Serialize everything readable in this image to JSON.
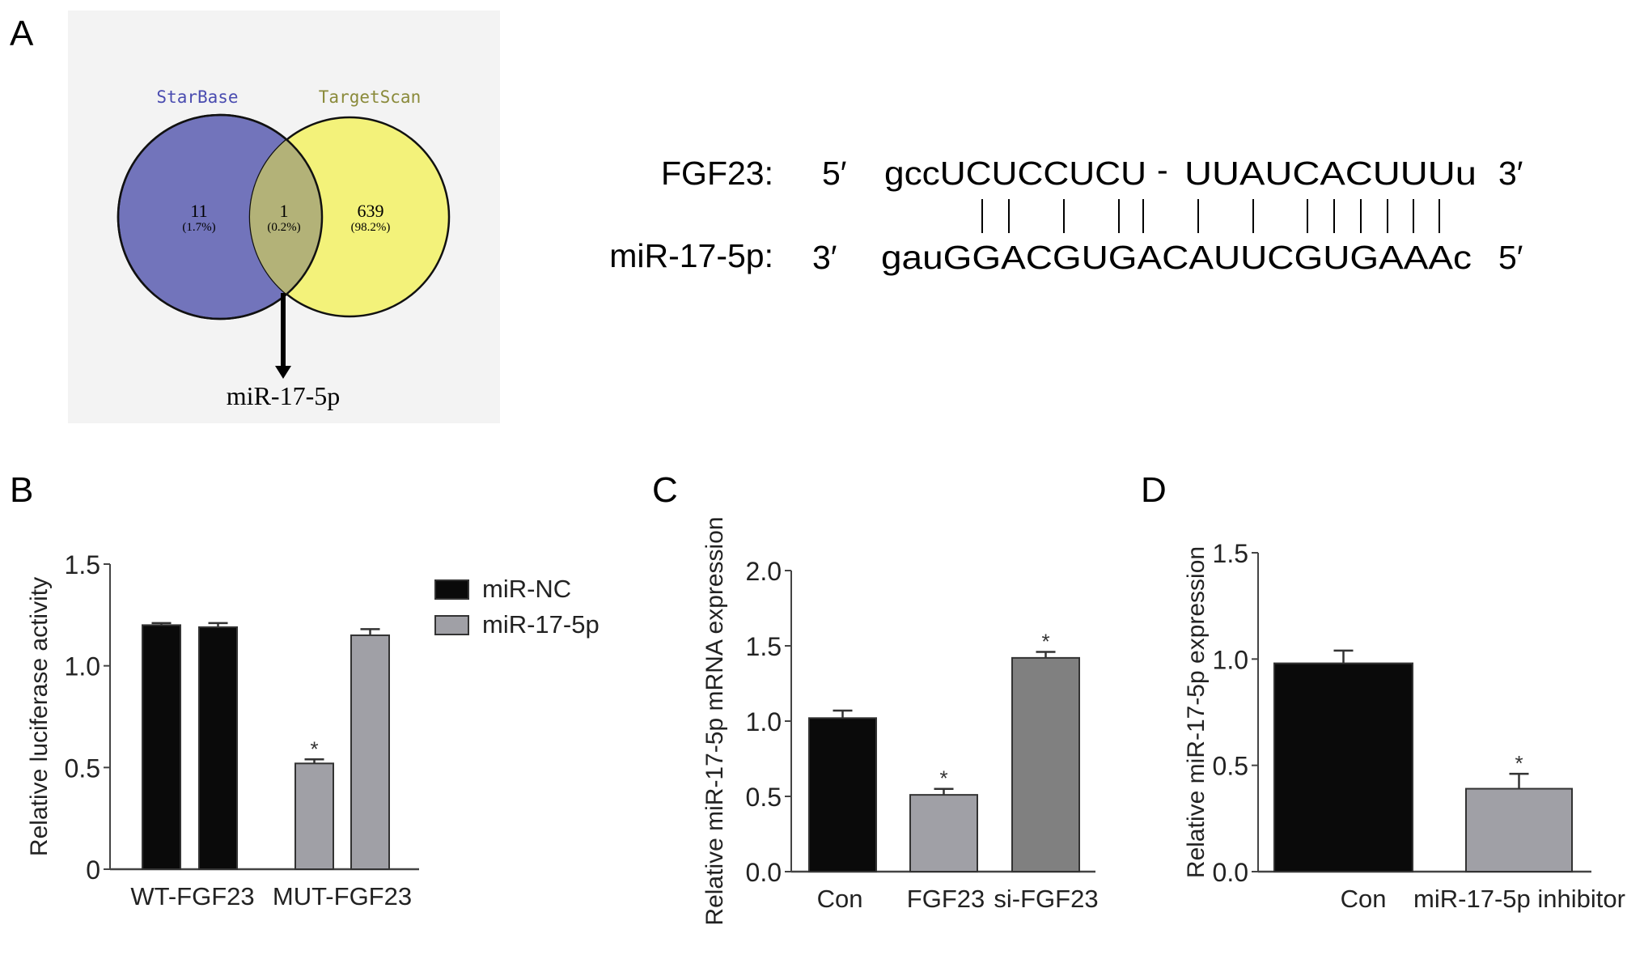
{
  "panel_labels": {
    "a": "A",
    "b": "B",
    "c": "C",
    "d": "D"
  },
  "venn": {
    "set1": {
      "name": "StarBase",
      "count": "11",
      "percent": "(1.7%)",
      "color": "#7274bb"
    },
    "set2": {
      "name": "TargetScan",
      "count": "639",
      "percent": "(98.2%)",
      "color": "#f3f27a"
    },
    "overlap": {
      "count": "1",
      "percent": "(0.2%)",
      "color": "#b3b278"
    },
    "result": "miR-17-5p"
  },
  "alignment": {
    "top": {
      "label": "FGF23:",
      "left_end": "5′",
      "seq1": "gccUCUCCUCU",
      "gap": "-",
      "seq2": "UUAUCACUUUu",
      "right_end": "3′"
    },
    "bottom": {
      "label": "miR-17-5p:",
      "left_end": "3′",
      "seq": "gauGGACGUGACAUUCGUGAAAc",
      "right_end": "5′"
    }
  },
  "chart_data": [
    {
      "type": "bar",
      "panel": "B",
      "ylabel": "Relative luciferase activity",
      "ylim": [
        0,
        1.5
      ],
      "yticks": [
        "0",
        "0.5",
        "1.0",
        "1.5"
      ],
      "categories": [
        "WT-FGF23",
        "MUT-FGF23"
      ],
      "series": [
        {
          "name": "miR-NC",
          "color": "#0a0a0a",
          "values": [
            1.2,
            1.19
          ],
          "errors": [
            0.01,
            0.02
          ],
          "significant": [
            false,
            false
          ]
        },
        {
          "name": "miR-17-5p",
          "color": "#a0a0a6",
          "values": [
            0.52,
            1.15
          ],
          "errors": [
            0.02,
            0.03
          ],
          "significant": [
            true,
            false
          ]
        }
      ],
      "legend": "right",
      "significance_mark": "*"
    },
    {
      "type": "bar",
      "panel": "C",
      "ylabel": "Relative miR-17-5p mRNA expression",
      "ylim": [
        0,
        2.0
      ],
      "yticks": [
        "0.0",
        "0.5",
        "1.0",
        "1.5",
        "2.0"
      ],
      "categories": [
        "Con",
        "FGF23",
        "si-FGF23"
      ],
      "values": [
        1.02,
        0.51,
        1.42
      ],
      "errors": [
        0.05,
        0.04,
        0.04
      ],
      "colors": [
        "#0a0a0a",
        "#a0a0a6",
        "#808080"
      ],
      "significant": [
        false,
        true,
        true
      ],
      "significance_mark": "*"
    },
    {
      "type": "bar",
      "panel": "D",
      "ylabel": "Relative miR-17-5p expression",
      "ylim": [
        0,
        1.5
      ],
      "yticks": [
        "0.0",
        "0.5",
        "1.0",
        "1.5"
      ],
      "categories": [
        "Con",
        "miR-17-5p inhibitor"
      ],
      "values": [
        0.98,
        0.39
      ],
      "errors": [
        0.06,
        0.07
      ],
      "colors": [
        "#0a0a0a",
        "#a0a0a6"
      ],
      "significant": [
        false,
        true
      ],
      "significance_mark": "*"
    }
  ]
}
